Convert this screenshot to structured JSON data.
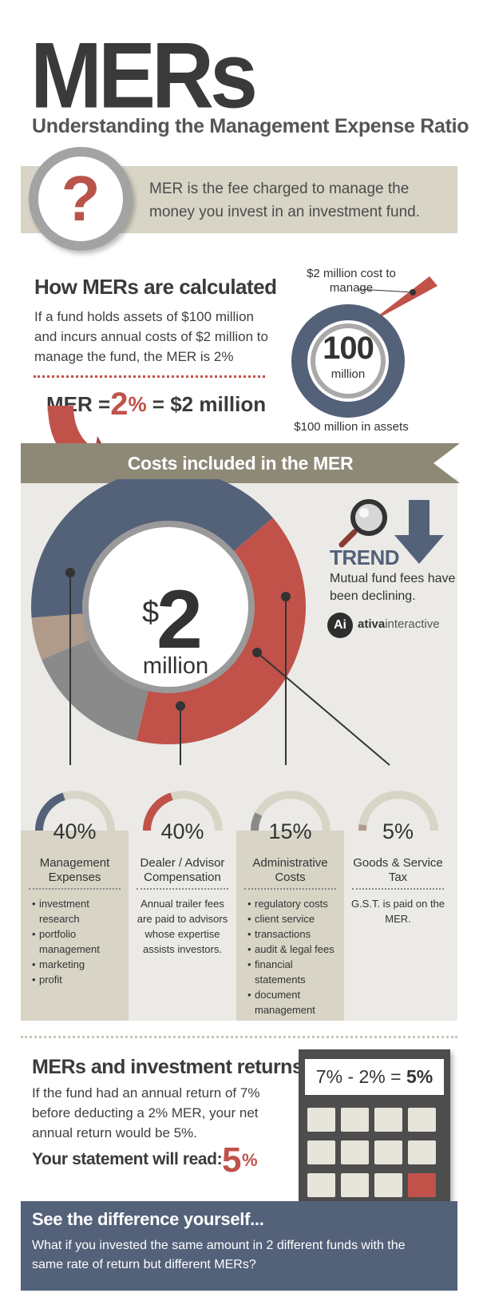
{
  "header": {
    "title": "MERs",
    "subtitle": "Understanding the Management Expense Ratio"
  },
  "definition": {
    "icon": "question-mark-icon",
    "symbol": "?",
    "text": "MER is the fee charged to manage the money you invest in an investment fund."
  },
  "calculation": {
    "heading": "How MERs are calculated",
    "text": "If a fund holds assets of $100 million and incurs annual costs of $2 million to manage the fund, the MER is 2%",
    "formula_prefix": "MER =",
    "formula_value": "2",
    "formula_pct": "%",
    "formula_suffix": "= $2 million",
    "diagram": {
      "cost_label": "$2 million cost to manage",
      "center_value": "100",
      "center_unit": "million",
      "assets_label": "$100 million in assets"
    }
  },
  "costs": {
    "banner": "Costs included in the MER",
    "total_symbol": "$",
    "total_value": "2",
    "total_unit": "million",
    "trend": {
      "title": "TREND",
      "text": "Mutual fund fees have been declining."
    },
    "brand": {
      "badge": "Ai",
      "name_bold": "ativa",
      "name_regular": "interactive"
    },
    "segments": [
      {
        "percent": "40%",
        "share": 0.4,
        "name": "Management Expenses",
        "color": "#536179",
        "items": [
          "investment research",
          "portfolio management",
          "marketing",
          "profit"
        ]
      },
      {
        "percent": "40%",
        "share": 0.4,
        "name": "Dealer / Advisor Compensation",
        "color": "#c0524a",
        "description": "Annual trailer fees are paid to advisors whose expertise assists investors."
      },
      {
        "percent": "15%",
        "share": 0.15,
        "name": "Administrative Costs",
        "color": "#8a8a8a",
        "items": [
          "regulatory costs",
          "client service",
          "transactions",
          "audit & legal fees",
          "financial statements",
          "document management"
        ]
      },
      {
        "percent": "5%",
        "share": 0.05,
        "name": "Goods & Service Tax",
        "color": "#b09a8a",
        "description": "G.S.T. is paid on the MER."
      }
    ]
  },
  "returns": {
    "heading": "MERs and investment returns",
    "text": "If the fund had an annual return of 7% before deducting a 2% MER, your net annual return would be 5%.",
    "statement_label": "Your statement will read:",
    "statement_value": "5",
    "statement_pct": "%",
    "calculator_expression": "7% - 2% =",
    "calculator_result": "5%"
  },
  "difference": {
    "heading": "See the difference yourself...",
    "text": "What if you invested the same amount in 2 different funds with the same rate of return but different MERs?"
  }
}
